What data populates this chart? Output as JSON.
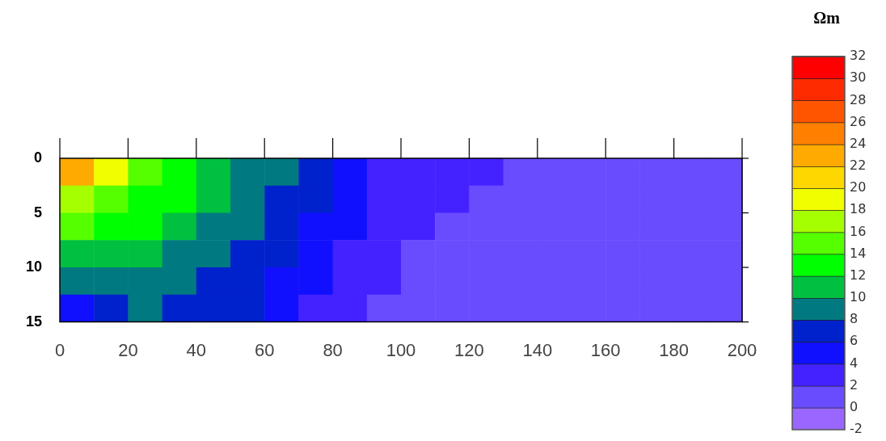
{
  "chart_data": {
    "type": "heatmap",
    "clabel": "Ωm",
    "xlim": [
      0,
      200
    ],
    "xticks": [
      0,
      20,
      40,
      60,
      80,
      100,
      120,
      140,
      160,
      180,
      200
    ],
    "ylim": [
      15,
      0
    ],
    "yticks": [
      0,
      5,
      10,
      15
    ],
    "clim": [
      -2,
      32
    ],
    "cticks": [
      -2,
      0,
      2,
      4,
      6,
      8,
      10,
      12,
      14,
      16,
      18,
      20,
      22,
      24,
      26,
      28,
      30,
      32
    ],
    "colors": [
      "#9966ff",
      "#6a4cff",
      "#4422ff",
      "#1010ff",
      "#0022cc",
      "#007a80",
      "#00c040",
      "#00ff00",
      "#55ff00",
      "#a6ff00",
      "#f0ff00",
      "#ffd700",
      "#ffaa00",
      "#ff8000",
      "#ff5500",
      "#ff2b00",
      "#ff0000"
    ],
    "cells": [
      [
        22,
        18.5,
        15.8,
        13.5,
        11.6,
        9.7,
        8,
        6.3,
        5,
        3.8,
        3.3,
        2.8,
        2.2,
        1.8,
        1.6,
        1.5,
        1.4,
        1.3,
        1.2,
        1.1
      ],
      [
        17,
        15,
        13.5,
        12,
        10.6,
        9.1,
        7.6,
        6,
        4.7,
        3.5,
        2.8,
        2.2,
        1.8,
        1.6,
        1.5,
        1.4,
        1.3,
        1.2,
        1.1,
        1
      ],
      [
        14,
        13,
        12,
        10.8,
        9.6,
        8.4,
        7,
        5.5,
        4.3,
        3.1,
        2.1,
        1.8,
        1.6,
        1.5,
        1.4,
        1.3,
        1.2,
        1.1,
        1,
        1
      ],
      [
        11.8,
        11.3,
        10.5,
        9.6,
        8.7,
        7.6,
        6.3,
        4.9,
        3.8,
        2.6,
        1.8,
        1.7,
        1.6,
        1.5,
        1.4,
        1.3,
        1.2,
        1.1,
        1,
        1
      ],
      [
        8.2,
        9,
        8.9,
        8.5,
        7.8,
        6.8,
        5.6,
        4.3,
        3.2,
        2.1,
        1.7,
        1.6,
        1.5,
        1.4,
        1.3,
        1.2,
        1.1,
        1,
        1,
        1
      ],
      [
        4.8,
        7,
        8,
        7.7,
        7,
        6,
        4.8,
        3.6,
        2.5,
        1.8,
        1.6,
        1.5,
        1.4,
        1.3,
        1.2,
        1.1,
        1,
        1,
        1,
        1
      ]
    ]
  }
}
